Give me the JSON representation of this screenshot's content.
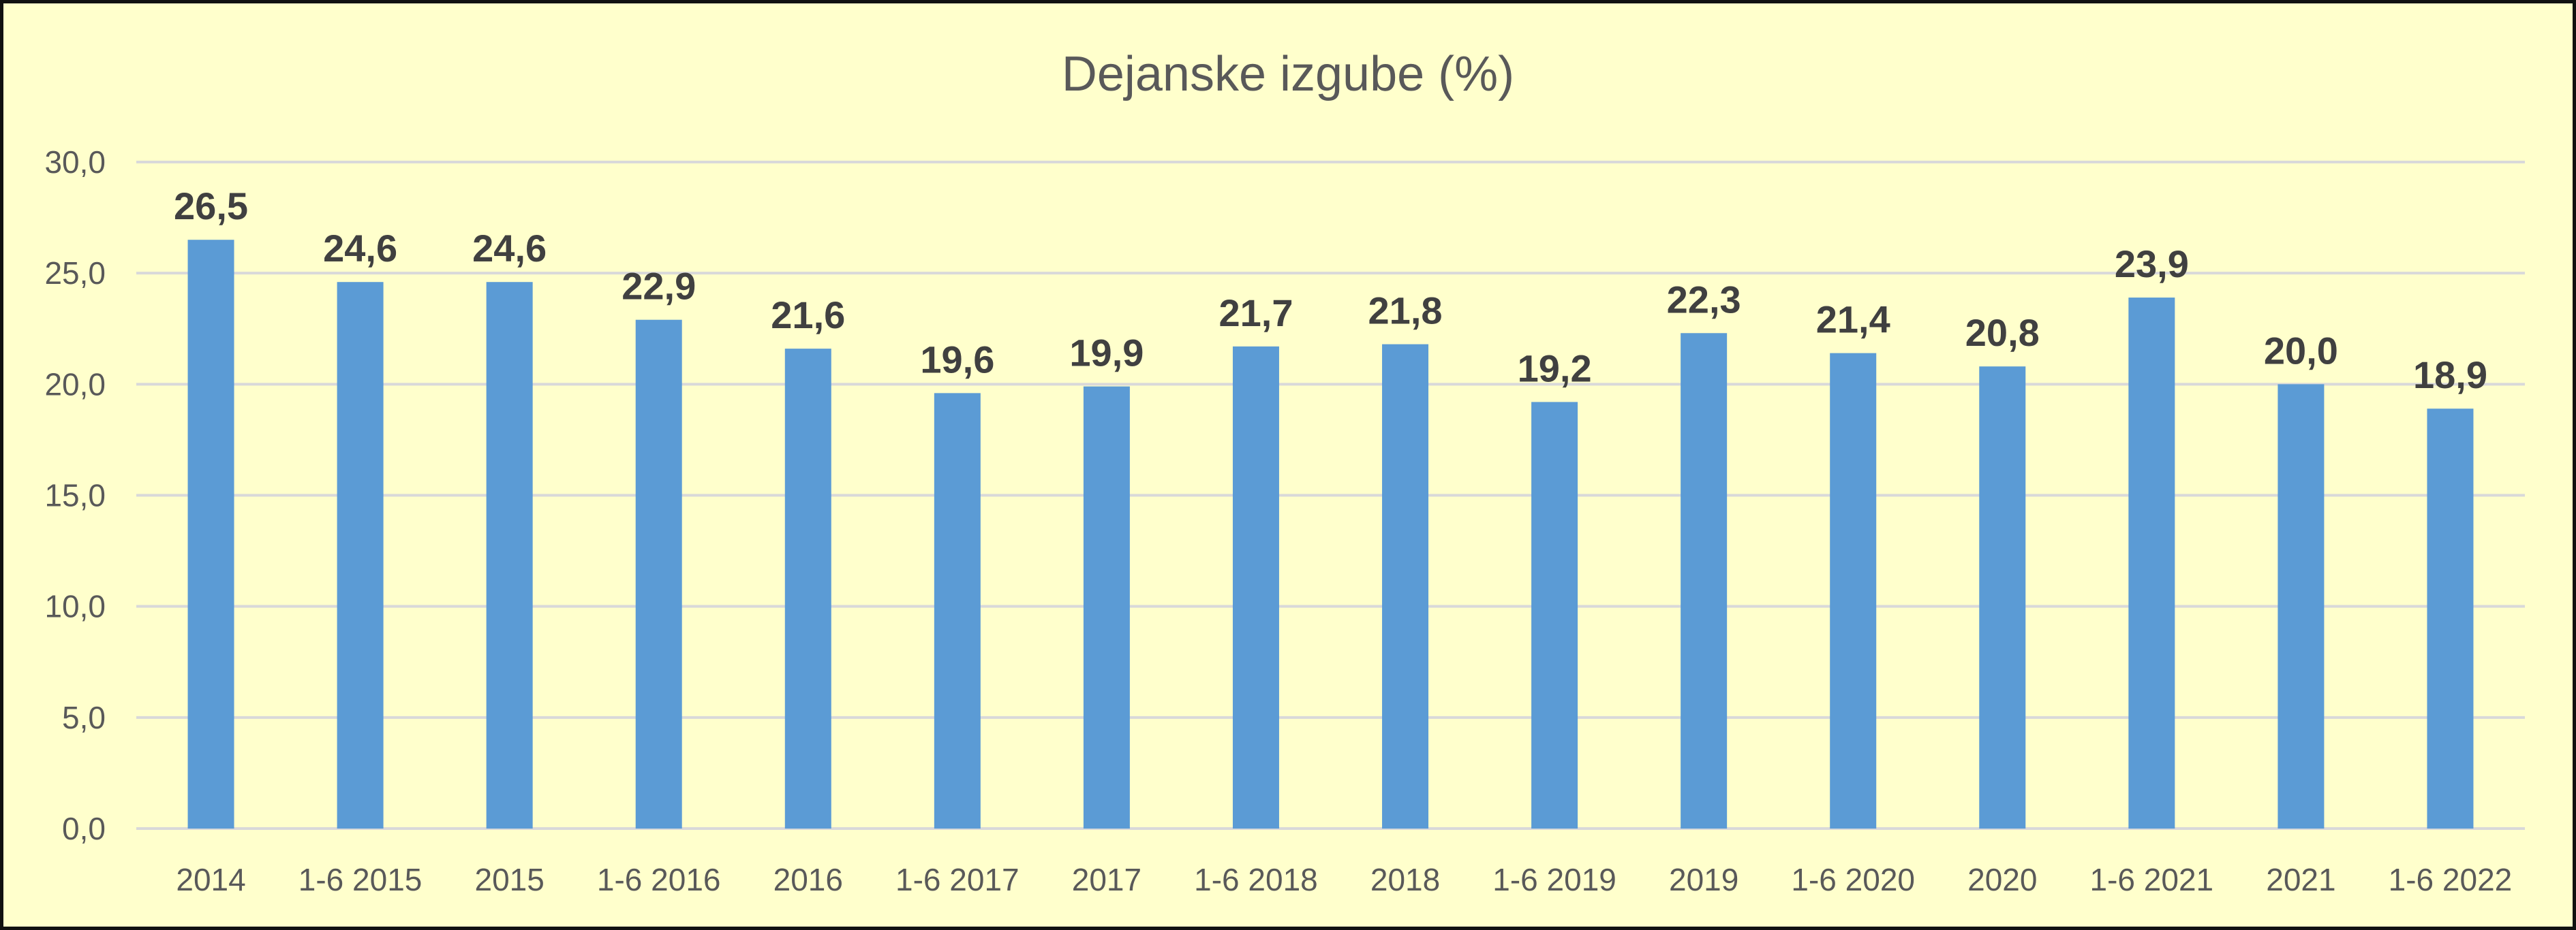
{
  "chart_data": {
    "type": "bar",
    "title": "Dejanske izgube (%)",
    "xlabel": "",
    "ylabel": "",
    "categories": [
      "2014",
      "1-6 2015",
      "2015",
      "1-6 2016",
      "2016",
      "1-6 2017",
      "2017",
      "1-6 2018",
      "2018",
      "1-6 2019",
      "2019",
      "1-6 2020",
      "2020",
      "1-6 2021",
      "2021",
      "1-6 2022"
    ],
    "values": [
      26.5,
      24.6,
      24.6,
      22.9,
      21.6,
      19.6,
      19.9,
      21.7,
      21.8,
      19.2,
      22.3,
      21.4,
      20.8,
      23.9,
      20.0,
      18.9
    ],
    "data_labels": [
      "26,5",
      "24,6",
      "24,6",
      "22,9",
      "21,6",
      "19,6",
      "19,9",
      "21,7",
      "21,8",
      "19,2",
      "22,3",
      "21,4",
      "20,8",
      "23,9",
      "20,0",
      "18,9"
    ],
    "ylim": [
      0,
      30
    ],
    "yticks": [
      0,
      5,
      10,
      15,
      20,
      25,
      30
    ],
    "ytick_labels": [
      "0,0",
      "5,0",
      "10,0",
      "15,0",
      "20,0",
      "25,0",
      "30,0"
    ],
    "grid": true,
    "legend": "none",
    "colors": {
      "background": "#ffffcc",
      "bar": "#5b9bd5",
      "gridline": "#d9d9d9",
      "frame": "#111111"
    }
  }
}
